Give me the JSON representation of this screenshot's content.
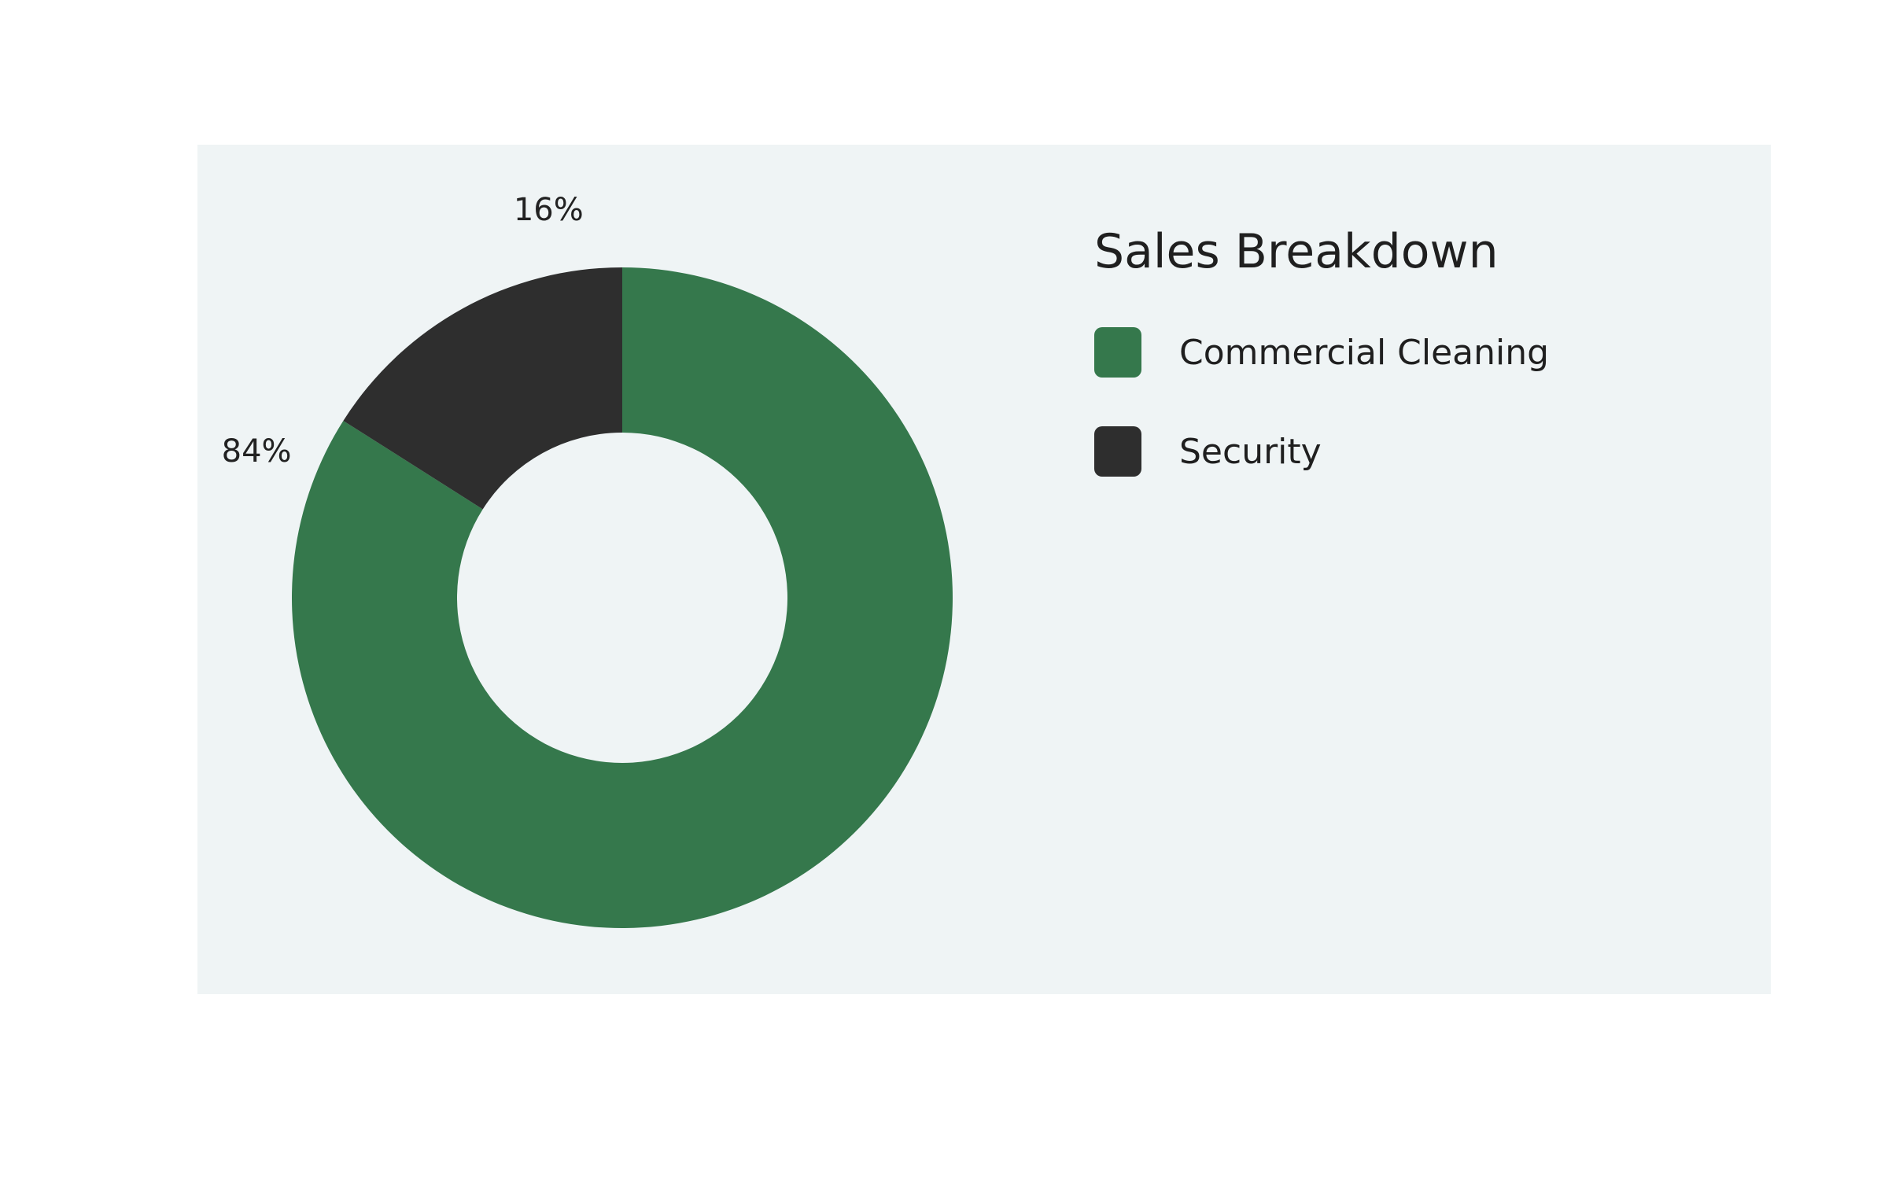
{
  "chart_data": {
    "type": "pie",
    "style": "donut",
    "title": "Sales Breakdown",
    "legend_position": "right",
    "categories": [
      "Commercial Cleaning",
      "Security"
    ],
    "values": [
      84,
      16
    ],
    "value_labels": [
      "84%",
      "16%"
    ],
    "colors": [
      "#35784c",
      "#2e2e2e"
    ]
  },
  "page": {
    "panel_background": "#eff4f5"
  }
}
